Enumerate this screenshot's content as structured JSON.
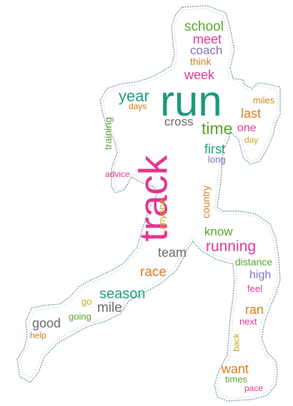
{
  "image": {
    "subject": "runner-silhouette-word-cloud"
  },
  "words": [
    {
      "id": "run",
      "text": "run",
      "color": "#1a9a7a"
    },
    {
      "id": "track",
      "text": "track",
      "color": "#e0368e"
    },
    {
      "id": "school",
      "text": "school",
      "color": "#5aa02c"
    },
    {
      "id": "meet",
      "text": "meet",
      "color": "#e0368e"
    },
    {
      "id": "coach",
      "text": "coach",
      "color": "#7a6fb8"
    },
    {
      "id": "think",
      "text": "think",
      "color": "#d97a1c"
    },
    {
      "id": "week",
      "text": "week",
      "color": "#e0368e"
    },
    {
      "id": "year",
      "text": "year",
      "color": "#1a9a7a"
    },
    {
      "id": "days",
      "text": "days",
      "color": "#d97a1c"
    },
    {
      "id": "miles",
      "text": "miles",
      "color": "#c98a1c"
    },
    {
      "id": "last",
      "text": "last",
      "color": "#d97a1c"
    },
    {
      "id": "cross",
      "text": "cross",
      "color": "#666666"
    },
    {
      "id": "time",
      "text": "time",
      "color": "#5aa02c"
    },
    {
      "id": "one",
      "text": "one",
      "color": "#e0368e"
    },
    {
      "id": "day",
      "text": "day",
      "color": "#c9a21c"
    },
    {
      "id": "training",
      "text": "training",
      "color": "#5aa02c"
    },
    {
      "id": "first",
      "text": "first",
      "color": "#1a9a7a"
    },
    {
      "id": "long",
      "text": "long",
      "color": "#7a6fb8"
    },
    {
      "id": "advice",
      "text": "advice",
      "color": "#e0368e"
    },
    {
      "id": "anyone",
      "text": "anyone",
      "color": "#c9a21c"
    },
    {
      "id": "country",
      "text": "country",
      "color": "#d97a1c"
    },
    {
      "id": "know",
      "text": "know",
      "color": "#5aa02c"
    },
    {
      "id": "running",
      "text": "running",
      "color": "#e0368e"
    },
    {
      "id": "team",
      "text": "team",
      "color": "#666666"
    },
    {
      "id": "distance",
      "text": "distance",
      "color": "#5aa02c"
    },
    {
      "id": "race",
      "text": "race",
      "color": "#d97a1c"
    },
    {
      "id": "high",
      "text": "high",
      "color": "#7a6fb8"
    },
    {
      "id": "feel",
      "text": "feel",
      "color": "#e0368e"
    },
    {
      "id": "season",
      "text": "season",
      "color": "#1a9a7a"
    },
    {
      "id": "go",
      "text": "go",
      "color": "#c9a21c"
    },
    {
      "id": "mile",
      "text": "mile",
      "color": "#666666"
    },
    {
      "id": "ran",
      "text": "ran",
      "color": "#d97a1c"
    },
    {
      "id": "good",
      "text": "good",
      "color": "#666666"
    },
    {
      "id": "going",
      "text": "going",
      "color": "#5aa02c"
    },
    {
      "id": "next",
      "text": "next",
      "color": "#e0368e"
    },
    {
      "id": "help",
      "text": "help",
      "color": "#d97a1c"
    },
    {
      "id": "back",
      "text": "back",
      "color": "#c9a21c"
    },
    {
      "id": "want",
      "text": "want",
      "color": "#d97a1c"
    },
    {
      "id": "times",
      "text": "times",
      "color": "#5aa02c"
    },
    {
      "id": "pace",
      "text": "pace",
      "color": "#e0368e"
    }
  ]
}
